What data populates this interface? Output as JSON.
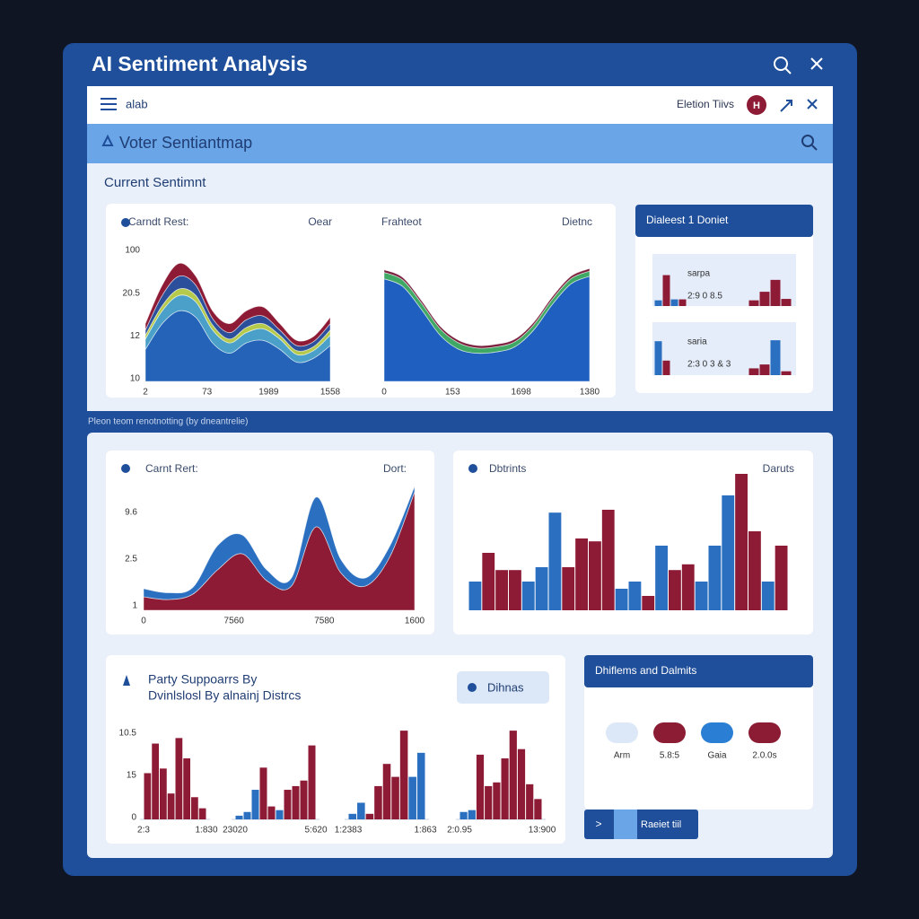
{
  "window": {
    "title": "AI Sentiment Analysis"
  },
  "toolbar": {
    "menu_label": "alab",
    "right_label": "Eletion Tiivs",
    "avatar": "H"
  },
  "subheader": {
    "title": "Voter Sentiantmap"
  },
  "section": {
    "title": "Current Sentimnt",
    "caption": "Pleon teom renotnotting (by dneantrelie)"
  },
  "charts": [
    {
      "type": "area",
      "header_left": "Carndt Rest:",
      "header_right": "Oear",
      "ylim": [
        0,
        100
      ],
      "y_labels": [
        "100",
        "20.5",
        "12",
        "10"
      ],
      "x_labels": [
        "2",
        "73",
        "1989",
        "1558"
      ],
      "series": [
        {
          "color": "#2563b8",
          "values": [
            25,
            45,
            55,
            50,
            30,
            22,
            30,
            32,
            25,
            15,
            18,
            28
          ]
        },
        {
          "color": "#4aa0c8",
          "values": [
            8,
            10,
            12,
            12,
            10,
            8,
            8,
            9,
            8,
            6,
            6,
            8
          ]
        },
        {
          "color": "#b5c94a",
          "values": [
            3,
            4,
            5,
            5,
            4,
            3,
            4,
            4,
            3,
            3,
            3,
            4
          ]
        },
        {
          "color": "#2b4f9a",
          "values": [
            4,
            8,
            10,
            8,
            5,
            5,
            6,
            6,
            4,
            4,
            4,
            5
          ]
        },
        {
          "color": "#8e1b35",
          "values": [
            5,
            8,
            10,
            7,
            6,
            7,
            7,
            7,
            5,
            4,
            4,
            5
          ]
        }
      ]
    },
    {
      "type": "area",
      "header_left": "Frahteot",
      "header_right": "Dietnc",
      "ylim": [
        0,
        100
      ],
      "x_labels": [
        "0",
        "153",
        "1698",
        "1380"
      ],
      "series": [
        {
          "color": "#1f5fbf",
          "values": [
            80,
            74,
            56,
            36,
            25,
            22,
            23,
            27,
            40,
            60,
            76,
            82
          ]
        },
        {
          "color": "#3fa864",
          "values": [
            5,
            5,
            5,
            5,
            5,
            4,
            4,
            4,
            4,
            4,
            4,
            4
          ]
        },
        {
          "color": "#7a1e3c",
          "values": [
            2,
            2,
            2,
            2,
            2,
            2,
            2,
            2,
            2,
            2,
            2,
            2
          ]
        }
      ]
    },
    {
      "type": "area",
      "header_left": "Carnt Rert:",
      "header_right": "Dort:",
      "ylim": [
        0,
        100
      ],
      "y_labels": [
        "9.6",
        "2.5",
        "1"
      ],
      "x_labels": [
        "0",
        "7560",
        "7580",
        "1600"
      ],
      "series": [
        {
          "color": "#8e1b35",
          "values": [
            10,
            8,
            12,
            30,
            42,
            22,
            18,
            62,
            28,
            18,
            40,
            88
          ]
        },
        {
          "color": "#2a6fc0",
          "values": [
            6,
            5,
            5,
            18,
            14,
            8,
            6,
            22,
            10,
            6,
            8,
            4
          ]
        }
      ]
    },
    {
      "type": "bar",
      "header_left": "Dbtrints",
      "header_right": "Daruts",
      "ylim": [
        0,
        100
      ],
      "bars": [
        {
          "color": "#2a6fc0",
          "value": 20
        },
        {
          "color": "#8e1b35",
          "value": 40
        },
        {
          "color": "#8e1b35",
          "value": 28
        },
        {
          "color": "#8e1b35",
          "value": 28
        },
        {
          "color": "#2a6fc0",
          "value": 20
        },
        {
          "color": "#2a6fc0",
          "value": 30
        },
        {
          "color": "#2a6fc0",
          "value": 68
        },
        {
          "color": "#8e1b35",
          "value": 30
        },
        {
          "color": "#8e1b35",
          "value": 50
        },
        {
          "color": "#8e1b35",
          "value": 48
        },
        {
          "color": "#8e1b35",
          "value": 70
        },
        {
          "color": "#2a6fc0",
          "value": 15
        },
        {
          "color": "#2a6fc0",
          "value": 20
        },
        {
          "color": "#8e1b35",
          "value": 10
        },
        {
          "color": "#2a6fc0",
          "value": 45
        },
        {
          "color": "#8e1b35",
          "value": 28
        },
        {
          "color": "#8e1b35",
          "value": 32
        },
        {
          "color": "#2a6fc0",
          "value": 20
        },
        {
          "color": "#2a6fc0",
          "value": 45
        },
        {
          "color": "#2a6fc0",
          "value": 80
        },
        {
          "color": "#8e1b35",
          "value": 95
        },
        {
          "color": "#8e1b35",
          "value": 55
        },
        {
          "color": "#2a6fc0",
          "value": 20
        },
        {
          "color": "#8e1b35",
          "value": 45
        }
      ]
    }
  ],
  "district_card": {
    "title": "Dialeest 1 Doniet",
    "panels": [
      {
        "type": "bar",
        "label": "sarpa",
        "sublabel": "2:9 0 8.5",
        "ylim": [
          0,
          100
        ],
        "left_bars": [
          {
            "color": "#2a6fc0",
            "value": 12
          },
          {
            "color": "#8e1b35",
            "value": 65
          },
          {
            "color": "#2a6fc0",
            "value": 14
          },
          {
            "color": "#8e1b35",
            "value": 14
          }
        ],
        "right_bars": [
          {
            "color": "#8e1b35",
            "value": 12
          },
          {
            "color": "#8e1b35",
            "value": 30
          },
          {
            "color": "#8e1b35",
            "value": 55
          },
          {
            "color": "#8e1b35",
            "value": 15
          }
        ]
      },
      {
        "type": "bar",
        "label": "saria",
        "sublabel": "2:3 0 3 & 3",
        "ylim": [
          0,
          100
        ],
        "left_bars": [
          {
            "color": "#2a6fc0",
            "value": 70
          },
          {
            "color": "#8e1b35",
            "value": 30
          }
        ],
        "right_bars": [
          {
            "color": "#8e1b35",
            "value": 14
          },
          {
            "color": "#8e1b35",
            "value": 22
          },
          {
            "color": "#2a6fc0",
            "value": 72
          },
          {
            "color": "#8e1b35",
            "value": 8
          }
        ]
      }
    ]
  },
  "party_card": {
    "title_lines": [
      "Party Suppoarrs By",
      "Dvinlslosl By alnainj Distrcs"
    ],
    "button": "Dihnas",
    "y_labels": [
      "10.5",
      "15",
      "0"
    ],
    "charts": [
      {
        "type": "bar",
        "ylim": [
          0,
          100
        ],
        "x_labels": [
          "2:3",
          "1:830"
        ],
        "bars": [
          {
            "color": "#8e1b35",
            "value": 50
          },
          {
            "color": "#8e1b35",
            "value": 82
          },
          {
            "color": "#8e1b35",
            "value": 55
          },
          {
            "color": "#8e1b35",
            "value": 28
          },
          {
            "color": "#8e1b35",
            "value": 88
          },
          {
            "color": "#8e1b35",
            "value": 66
          },
          {
            "color": "#8e1b35",
            "value": 24
          },
          {
            "color": "#8e1b35",
            "value": 12
          }
        ]
      },
      {
        "type": "bar",
        "ylim": [
          0,
          100
        ],
        "x_labels": [
          "23020",
          "5:620"
        ],
        "bars": [
          {
            "color": "#2a6fc0",
            "value": 4
          },
          {
            "color": "#2a6fc0",
            "value": 8
          },
          {
            "color": "#2a6fc0",
            "value": 32
          },
          {
            "color": "#8e1b35",
            "value": 56
          },
          {
            "color": "#8e1b35",
            "value": 14
          },
          {
            "color": "#2a6fc0",
            "value": 10
          },
          {
            "color": "#8e1b35",
            "value": 32
          },
          {
            "color": "#8e1b35",
            "value": 36
          },
          {
            "color": "#8e1b35",
            "value": 42
          },
          {
            "color": "#8e1b35",
            "value": 80
          }
        ]
      },
      {
        "type": "bar",
        "ylim": [
          0,
          100
        ],
        "x_labels": [
          "1:2383",
          "1:863"
        ],
        "bars": [
          {
            "color": "#2a6fc0",
            "value": 6
          },
          {
            "color": "#2a6fc0",
            "value": 18
          },
          {
            "color": "#8e1b35",
            "value": 6
          },
          {
            "color": "#8e1b35",
            "value": 36
          },
          {
            "color": "#8e1b35",
            "value": 60
          },
          {
            "color": "#8e1b35",
            "value": 46
          },
          {
            "color": "#8e1b35",
            "value": 96
          },
          {
            "color": "#2a6fc0",
            "value": 46
          },
          {
            "color": "#2a6fc0",
            "value": 72
          }
        ]
      },
      {
        "type": "bar",
        "ylim": [
          0,
          100
        ],
        "x_labels": [
          "2:0.95",
          "13:900"
        ],
        "bars": [
          {
            "color": "#2a6fc0",
            "value": 8
          },
          {
            "color": "#2a6fc0",
            "value": 10
          },
          {
            "color": "#8e1b35",
            "value": 70
          },
          {
            "color": "#8e1b35",
            "value": 36
          },
          {
            "color": "#8e1b35",
            "value": 40
          },
          {
            "color": "#8e1b35",
            "value": 66
          },
          {
            "color": "#8e1b35",
            "value": 96
          },
          {
            "color": "#8e1b35",
            "value": 76
          },
          {
            "color": "#8e1b35",
            "value": 38
          },
          {
            "color": "#8e1b35",
            "value": 22
          }
        ]
      }
    ]
  },
  "legend_card": {
    "title": "Dhiflems and Dalmits",
    "items": [
      {
        "color": "#dce8f7",
        "label": "Arm"
      },
      {
        "color": "#8c1c34",
        "label": "5.8:5"
      },
      {
        "color": "#2a7fd4",
        "label": "Gaia"
      },
      {
        "color": "#8c1c34",
        "label": "2.0.0s"
      }
    ]
  },
  "footer_button": {
    "icon_label": ">",
    "label": "Raeiet tiil"
  }
}
